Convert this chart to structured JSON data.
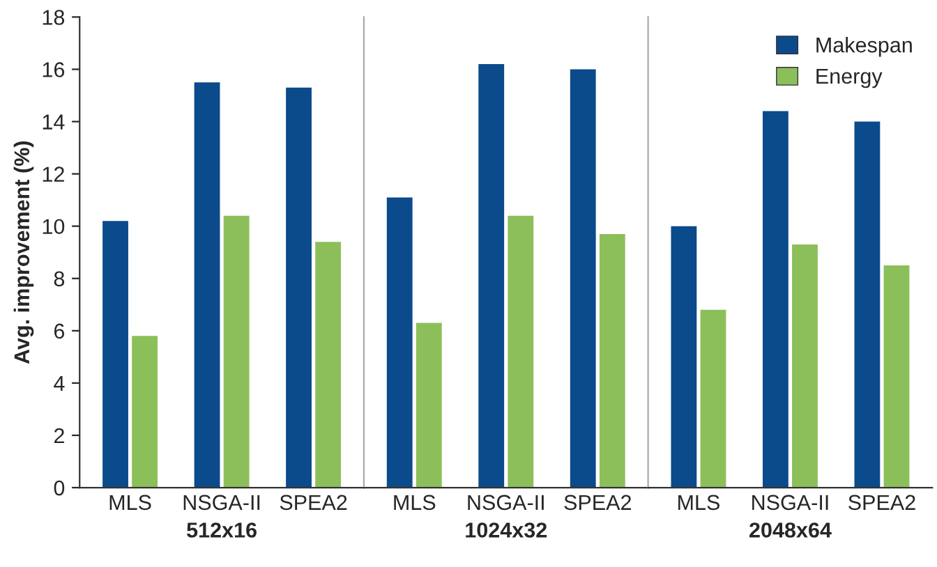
{
  "chart_data": [
    {
      "type": "bar",
      "ylabel": "Avg. improvement (%)",
      "xlabel": "512x16",
      "categories": [
        "MLS",
        "NSGA-II",
        "SPEA2"
      ],
      "ylim": [
        0,
        18
      ],
      "yticks": [
        0,
        2,
        4,
        6,
        8,
        10,
        12,
        14,
        16,
        18
      ],
      "legend": false,
      "series": [
        {
          "color": "#0b4a8b",
          "values": [
            10.2,
            15.5,
            15.3
          ]
        },
        {
          "color": "#8cbf5a",
          "values": [
            5.8,
            10.4,
            9.4
          ]
        }
      ]
    },
    {
      "type": "bar",
      "xlabel": "1024x32",
      "categories": [
        "MLS",
        "NSGA-II",
        "SPEA2"
      ],
      "ylim": [
        0,
        18
      ],
      "tick_labels": "x",
      "legend": false,
      "series": [
        {
          "color": "#0b4a8b",
          "values": [
            11.1,
            16.2,
            16.0
          ]
        },
        {
          "color": "#8cbf5a",
          "values": [
            6.3,
            10.4,
            9.7
          ]
        }
      ]
    },
    {
      "type": "bar",
      "xlabel": "2048x64",
      "categories": [
        "MLS",
        "NSGA-II",
        "SPEA2"
      ],
      "ylim": [
        0,
        18
      ],
      "tick_labels": "x",
      "legend": "top right",
      "series": [
        {
          "name": "Makespan",
          "color": "#0b4a8b",
          "values": [
            10.0,
            14.4,
            14.0
          ]
        },
        {
          "name": "Energy",
          "color": "#8cbf5a",
          "values": [
            6.8,
            9.3,
            8.5
          ]
        }
      ]
    }
  ]
}
